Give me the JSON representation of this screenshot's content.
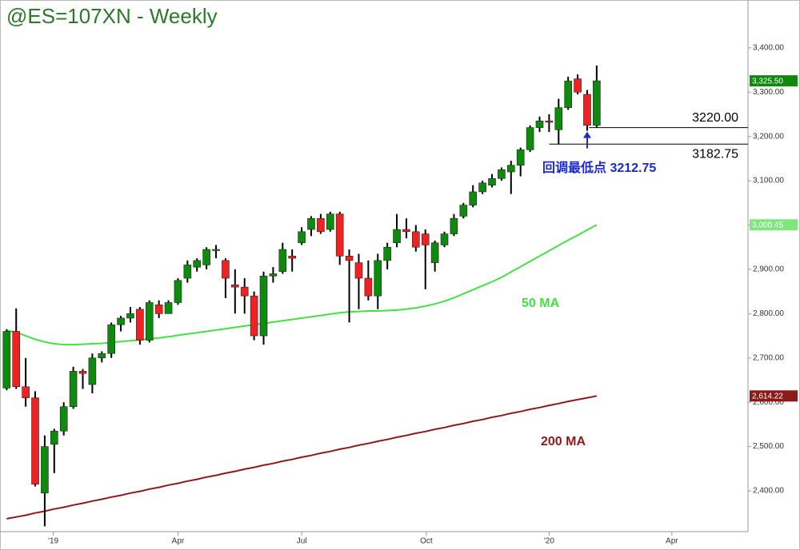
{
  "chart_data": {
    "type": "candlestick",
    "title": "@ES=107XN - Weekly",
    "up_color": "#0e8a0e",
    "down_color": "#ee2222",
    "open": [
      2632,
      2760,
      2635,
      2610,
      2395,
      2505,
      2535,
      2590,
      2670,
      2640,
      2700,
      2710,
      2775,
      2790,
      2810,
      2740,
      2820,
      2800,
      2825,
      2880,
      2905,
      2910,
      2945,
      2920,
      2865,
      2860,
      2840,
      2750,
      2885,
      2895,
      2930,
      2960,
      2990,
      3015,
      2990,
      3025,
      2930,
      2915,
      2880,
      2840,
      2920,
      2960,
      2990,
      2985,
      2980,
      2915,
      2955,
      2980,
      3020,
      3045,
      3075,
      3090,
      3105,
      3120,
      3135,
      3170,
      3220,
      3235,
      3215,
      3265,
      3330,
      3295,
      3225
    ],
    "high": [
      2765,
      2812,
      2700,
      2625,
      2525,
      2540,
      2600,
      2680,
      2675,
      2710,
      2715,
      2780,
      2795,
      2815,
      2815,
      2830,
      2830,
      2830,
      2880,
      2920,
      2925,
      2950,
      2955,
      2925,
      2900,
      2880,
      2850,
      2895,
      2905,
      2960,
      2945,
      2995,
      3020,
      3025,
      3030,
      3030,
      2945,
      2935,
      2920,
      2935,
      2960,
      3025,
      3015,
      3000,
      2990,
      2965,
      2985,
      3025,
      3050,
      3090,
      3100,
      3115,
      3130,
      3145,
      3175,
      3225,
      3245,
      3250,
      3285,
      3335,
      3340,
      3305,
      3360
    ],
    "low": [
      2627,
      2630,
      2590,
      2410,
      2320,
      2440,
      2525,
      2585,
      2630,
      2620,
      2690,
      2700,
      2760,
      2780,
      2730,
      2735,
      2790,
      2800,
      2820,
      2870,
      2895,
      2900,
      2925,
      2835,
      2800,
      2800,
      2740,
      2730,
      2870,
      2890,
      2895,
      2955,
      2975,
      2980,
      2985,
      2910,
      2780,
      2810,
      2830,
      2810,
      2900,
      2950,
      2970,
      2940,
      2855,
      2895,
      2950,
      2975,
      3015,
      3040,
      3070,
      3085,
      3100,
      3070,
      3110,
      3165,
      3210,
      3210,
      3182,
      3260,
      3295,
      3212.75,
      3220
    ],
    "close": [
      2760,
      2635,
      2610,
      2415,
      2500,
      2535,
      2590,
      2670,
      2665,
      2700,
      2710,
      2775,
      2790,
      2800,
      2740,
      2825,
      2800,
      2825,
      2875,
      2910,
      2920,
      2945,
      2945,
      2880,
      2860,
      2840,
      2750,
      2885,
      2890,
      2945,
      2925,
      2985,
      3015,
      2985,
      3025,
      2930,
      2920,
      2880,
      2840,
      2920,
      2950,
      2990,
      2985,
      2950,
      2955,
      2960,
      2980,
      3015,
      3045,
      3075,
      3095,
      3105,
      3125,
      3135,
      3170,
      3220,
      3235,
      3232,
      3265,
      3325,
      3300,
      3225,
      3325.5
    ],
    "last_label": "3,325.50",
    "ma": [
      {
        "name": "50 MA",
        "color": "#44e044",
        "badge_color": "#7de67d",
        "value_label": "3,000.45",
        "values": [
          2762,
          2758,
          2750,
          2742,
          2736,
          2732,
          2730,
          2730,
          2731,
          2732,
          2733,
          2735,
          2737,
          2739,
          2741,
          2743,
          2745,
          2748,
          2751,
          2754,
          2757,
          2760,
          2763,
          2766,
          2769,
          2772,
          2775,
          2778,
          2781,
          2784,
          2787,
          2790,
          2793,
          2796,
          2799,
          2802,
          2804,
          2805,
          2806,
          2806,
          2807,
          2808,
          2810,
          2813,
          2817,
          2822,
          2828,
          2836,
          2845,
          2854,
          2863,
          2872,
          2882,
          2894,
          2906,
          2918,
          2930,
          2942,
          2954,
          2966,
          2977,
          2989,
          3000.45
        ]
      },
      {
        "name": "200 MA",
        "color": "#8b1a1a",
        "badge_color": "#8b1a1a",
        "value_label": "2,614.22",
        "values": [
          2337,
          2341,
          2345,
          2350,
          2354,
          2359,
          2363,
          2368,
          2372,
          2377,
          2381,
          2386,
          2390,
          2395,
          2399,
          2404,
          2408,
          2413,
          2417,
          2422,
          2426,
          2431,
          2435,
          2440,
          2444,
          2449,
          2453,
          2458,
          2462,
          2467,
          2471,
          2476,
          2480,
          2485,
          2489,
          2494,
          2498,
          2503,
          2507,
          2512,
          2516,
          2521,
          2525,
          2530,
          2534,
          2539,
          2543,
          2548,
          2552,
          2557,
          2561,
          2566,
          2570,
          2575,
          2579,
          2584,
          2588,
          2593,
          2597,
          2602,
          2606,
          2610,
          2614.22
        ]
      }
    ],
    "levels": [
      {
        "value": 3220,
        "label": "3220.00"
      },
      {
        "value": 3182.75,
        "label": "3182.75"
      }
    ],
    "annotation": "回调最低点 3212.75",
    "xlim": [
      -0.7,
      77.9
    ],
    "xticks": [
      {
        "value": 4.9,
        "label": "'19"
      },
      {
        "value": 18,
        "label": "Apr"
      },
      {
        "value": 31,
        "label": "Jul"
      },
      {
        "value": 44.1,
        "label": "Oct"
      },
      {
        "value": 57,
        "label": "'20"
      },
      {
        "value": 69.9,
        "label": "Apr"
      }
    ],
    "ylim": [
      2308,
      3508
    ],
    "yticks": [
      {
        "value": 2400,
        "label": "2,400.00"
      },
      {
        "value": 2500,
        "label": "2,500.00"
      },
      {
        "value": 2600,
        "label": "2,600.00"
      },
      {
        "value": 2700,
        "label": "2,700.00"
      },
      {
        "value": 2800,
        "label": "2,800.00"
      },
      {
        "value": 2900,
        "label": "2,900.00"
      },
      {
        "value": 3000,
        "label": "3,000.00"
      },
      {
        "value": 3100,
        "label": "3,100.00"
      },
      {
        "value": 3200,
        "label": "3,200.00"
      },
      {
        "value": 3300,
        "label": "3,300.00"
      },
      {
        "value": 3400,
        "label": "3,400.00"
      }
    ]
  }
}
